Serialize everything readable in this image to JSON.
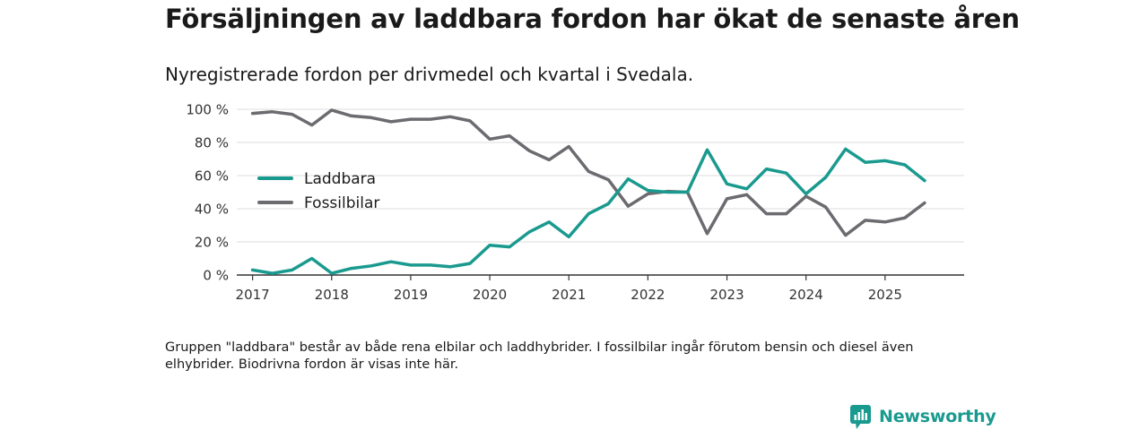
{
  "title": "Försäljningen av laddbara fordon har ökat de senaste åren",
  "subtitle": "Nyregistrerade fordon per drivmedel och kvartal i Svedala.",
  "footnote": "Gruppen \"laddbara\" består av både rena elbilar och laddhybrider. I fossilbilar ingår förutom bensin och diesel även elhybrider. Biodrivna fordon är visas inte här.",
  "brand": {
    "name": "Newsworthy",
    "color": "#1a9a8f"
  },
  "chart_data": {
    "type": "line",
    "xlim": [
      2016.8,
      2026.0
    ],
    "ylim": [
      0,
      100
    ],
    "x_ticks": [
      2017,
      2018,
      2019,
      2020,
      2021,
      2022,
      2023,
      2024,
      2025
    ],
    "x_tick_labels": [
      "2017",
      "2018",
      "2019",
      "2020",
      "2021",
      "2022",
      "2023",
      "2024",
      "2025"
    ],
    "y_ticks": [
      0,
      20,
      40,
      60,
      80,
      100
    ],
    "y_tick_labels": [
      "0 %",
      "20 %",
      "40 %",
      "60 %",
      "80 %",
      "100 %"
    ],
    "grid": true,
    "legend_position": "left",
    "x": [
      2017.0,
      2017.25,
      2017.5,
      2017.75,
      2018.0,
      2018.25,
      2018.5,
      2018.75,
      2019.0,
      2019.25,
      2019.5,
      2019.75,
      2020.0,
      2020.25,
      2020.5,
      2020.75,
      2021.0,
      2021.25,
      2021.5,
      2021.75,
      2022.0,
      2022.25,
      2022.5,
      2022.75,
      2023.0,
      2023.25,
      2023.5,
      2023.75,
      2024.0,
      2024.25,
      2024.5,
      2024.75,
      2025.0,
      2025.25,
      2025.5
    ],
    "series": [
      {
        "name": "Laddbara",
        "color": "#1a9a8f",
        "values": [
          3,
          1,
          3,
          10,
          1,
          4,
          5.5,
          8,
          6,
          6,
          5,
          7,
          18,
          17,
          26,
          32,
          23,
          37,
          43,
          58,
          51,
          50,
          50,
          75.5,
          55,
          52,
          64,
          61.5,
          49,
          59,
          76,
          68,
          69,
          66.5,
          57
        ]
      },
      {
        "name": "Fossilbilar",
        "color": "#6b6b70",
        "values": [
          97.5,
          98.5,
          97,
          90.5,
          99.5,
          96,
          95,
          92.5,
          94,
          94,
          95.5,
          93,
          82,
          84,
          75,
          69.5,
          77.5,
          62.5,
          57.5,
          41.5,
          49,
          50.5,
          50,
          25,
          46,
          48.5,
          37,
          37,
          47.5,
          41,
          24,
          33,
          32,
          34.5,
          43.5
        ]
      }
    ]
  }
}
